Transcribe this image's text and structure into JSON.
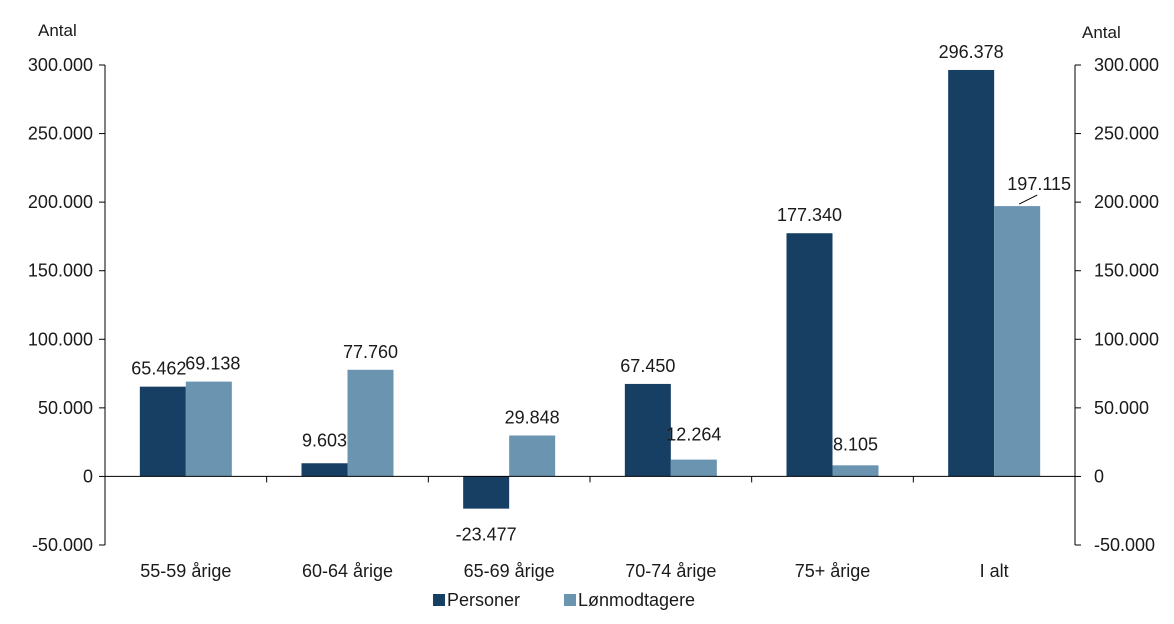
{
  "chart_data": {
    "type": "bar",
    "categories": [
      "55-59 årige",
      "60-64 årige",
      "65-69 årige",
      "70-74 årige",
      "75+ årige",
      "I alt"
    ],
    "series": [
      {
        "name": "Personer",
        "color": "#163f63",
        "values": [
          65462,
          9603,
          -23477,
          67450,
          177340,
          296378
        ],
        "labels": [
          "65.462",
          "9.603",
          "-23.477",
          "67.450",
          "177.340",
          "296.378"
        ]
      },
      {
        "name": "Lønmodtagere",
        "color": "#6b94b1",
        "values": [
          69138,
          77760,
          29848,
          12264,
          8105,
          197115
        ],
        "labels": [
          "69.138",
          "77.760",
          "29.848",
          "12.264",
          "8.105",
          "197.115"
        ]
      }
    ],
    "ylim": [
      -50000,
      300000
    ],
    "yticks": [
      -50000,
      0,
      50000,
      100000,
      150000,
      200000,
      250000,
      300000
    ],
    "ytick_labels": [
      "-50.000",
      "0",
      "50.000",
      "100.000",
      "150.000",
      "200.000",
      "250.000",
      "300.000"
    ],
    "y_left_label": "Antal",
    "y_right_label": "Antal",
    "legend_position": "bottom-center",
    "grid": false
  }
}
